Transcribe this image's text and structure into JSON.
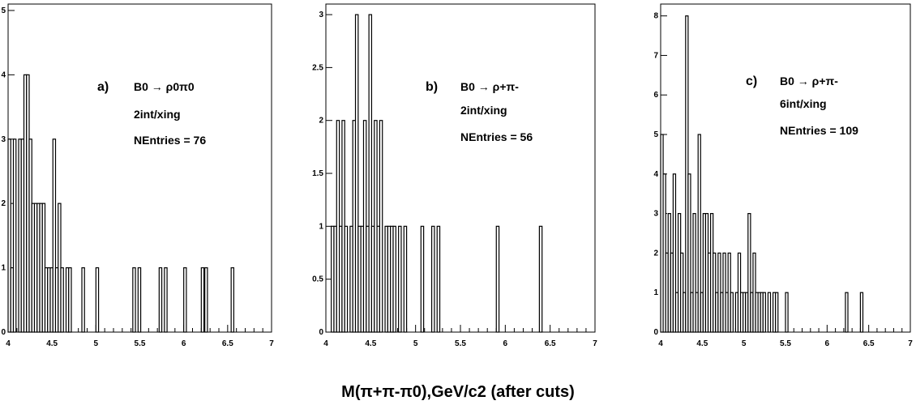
{
  "figure": {
    "xlabel": "M(π+π-π0),GeV/c2 (after cuts)"
  },
  "chart_data": [
    {
      "type": "bar",
      "panel_label": "a)",
      "title": "B0 → ρ0π0",
      "annotations": [
        "2int/xing",
        "NEntries = 76"
      ],
      "xlim": [
        4,
        7
      ],
      "ylim": [
        0,
        5.1
      ],
      "xticks": [
        "4",
        "4.5",
        "5",
        "5.5",
        "6",
        "6.5",
        "7"
      ],
      "yticks": [
        "0",
        "1",
        "2",
        "3",
        "4",
        "5"
      ],
      "bin_width": 0.03,
      "bins": [
        [
          4.0,
          3
        ],
        [
          4.03,
          1
        ],
        [
          4.06,
          3
        ],
        [
          4.09,
          0
        ],
        [
          4.12,
          3
        ],
        [
          4.15,
          3
        ],
        [
          4.18,
          4
        ],
        [
          4.21,
          4
        ],
        [
          4.24,
          3
        ],
        [
          4.27,
          2
        ],
        [
          4.3,
          2
        ],
        [
          4.33,
          2
        ],
        [
          4.36,
          2
        ],
        [
          4.39,
          2
        ],
        [
          4.42,
          1
        ],
        [
          4.45,
          1
        ],
        [
          4.48,
          1
        ],
        [
          4.51,
          3
        ],
        [
          4.54,
          1
        ],
        [
          4.57,
          2
        ],
        [
          4.6,
          1
        ],
        [
          4.63,
          0
        ],
        [
          4.66,
          1
        ],
        [
          4.69,
          1
        ],
        [
          4.84,
          1
        ],
        [
          5.0,
          1
        ],
        [
          5.42,
          1
        ],
        [
          5.48,
          1
        ],
        [
          5.72,
          1
        ],
        [
          5.78,
          1
        ],
        [
          6.0,
          1
        ],
        [
          6.2,
          1
        ],
        [
          6.24,
          1
        ],
        [
          6.54,
          1
        ]
      ]
    },
    {
      "type": "bar",
      "panel_label": "b)",
      "title": "B0 → ρ+π-",
      "annotations": [
        "2int/xing",
        "NEntries = 56"
      ],
      "xlim": [
        4,
        7
      ],
      "ylim": [
        0,
        3.1
      ],
      "xticks": [
        "4",
        "4.5",
        "5",
        "5.5",
        "6",
        "6.5",
        "7"
      ],
      "yticks": [
        "0",
        "0.5",
        "1",
        "1.5",
        "2",
        "2.5",
        "3"
      ],
      "bin_width": 0.03,
      "bins": [
        [
          4.06,
          1
        ],
        [
          4.09,
          1
        ],
        [
          4.12,
          2
        ],
        [
          4.15,
          1
        ],
        [
          4.18,
          2
        ],
        [
          4.21,
          1
        ],
        [
          4.24,
          0
        ],
        [
          4.27,
          1
        ],
        [
          4.3,
          2
        ],
        [
          4.33,
          3
        ],
        [
          4.36,
          1
        ],
        [
          4.39,
          1
        ],
        [
          4.42,
          2
        ],
        [
          4.45,
          1
        ],
        [
          4.48,
          3
        ],
        [
          4.51,
          1
        ],
        [
          4.54,
          2
        ],
        [
          4.57,
          1
        ],
        [
          4.6,
          2
        ],
        [
          4.66,
          1
        ],
        [
          4.69,
          1
        ],
        [
          4.72,
          1
        ],
        [
          4.75,
          1
        ],
        [
          4.81,
          1
        ],
        [
          4.87,
          1
        ],
        [
          5.06,
          1
        ],
        [
          5.18,
          1
        ],
        [
          5.24,
          1
        ],
        [
          5.9,
          1
        ],
        [
          6.38,
          1
        ]
      ]
    },
    {
      "type": "bar",
      "panel_label": "c)",
      "title": "B0 → ρ+π-",
      "annotations": [
        "6int/xing",
        "NEntries = 109"
      ],
      "xlim": [
        4,
        7
      ],
      "ylim": [
        0,
        8.3
      ],
      "xticks": [
        "4",
        "4.5",
        "5",
        "5.5",
        "6",
        "6.5",
        "7"
      ],
      "yticks": [
        "0",
        "1",
        "2",
        "3",
        "4",
        "5",
        "6",
        "7",
        "8"
      ],
      "bin_width": 0.03,
      "bins": [
        [
          4.0,
          5
        ],
        [
          4.03,
          4
        ],
        [
          4.06,
          2
        ],
        [
          4.09,
          3
        ],
        [
          4.12,
          2
        ],
        [
          4.15,
          4
        ],
        [
          4.18,
          1
        ],
        [
          4.21,
          3
        ],
        [
          4.24,
          2
        ],
        [
          4.27,
          1
        ],
        [
          4.3,
          8
        ],
        [
          4.33,
          4
        ],
        [
          4.36,
          1
        ],
        [
          4.39,
          3
        ],
        [
          4.42,
          1
        ],
        [
          4.45,
          5
        ],
        [
          4.48,
          1
        ],
        [
          4.51,
          3
        ],
        [
          4.54,
          3
        ],
        [
          4.57,
          2
        ],
        [
          4.6,
          3
        ],
        [
          4.63,
          2
        ],
        [
          4.66,
          1
        ],
        [
          4.69,
          2
        ],
        [
          4.72,
          1
        ],
        [
          4.75,
          2
        ],
        [
          4.78,
          1
        ],
        [
          4.81,
          2
        ],
        [
          4.84,
          1
        ],
        [
          4.87,
          0
        ],
        [
          4.9,
          1
        ],
        [
          4.93,
          2
        ],
        [
          4.96,
          1
        ],
        [
          4.99,
          1
        ],
        [
          5.02,
          1
        ],
        [
          5.05,
          3
        ],
        [
          5.08,
          1
        ],
        [
          5.11,
          2
        ],
        [
          5.14,
          1
        ],
        [
          5.17,
          1
        ],
        [
          5.2,
          1
        ],
        [
          5.23,
          1
        ],
        [
          5.29,
          1
        ],
        [
          5.35,
          1
        ],
        [
          5.38,
          1
        ],
        [
          5.5,
          1
        ],
        [
          6.22,
          1
        ],
        [
          6.4,
          1
        ]
      ]
    }
  ]
}
